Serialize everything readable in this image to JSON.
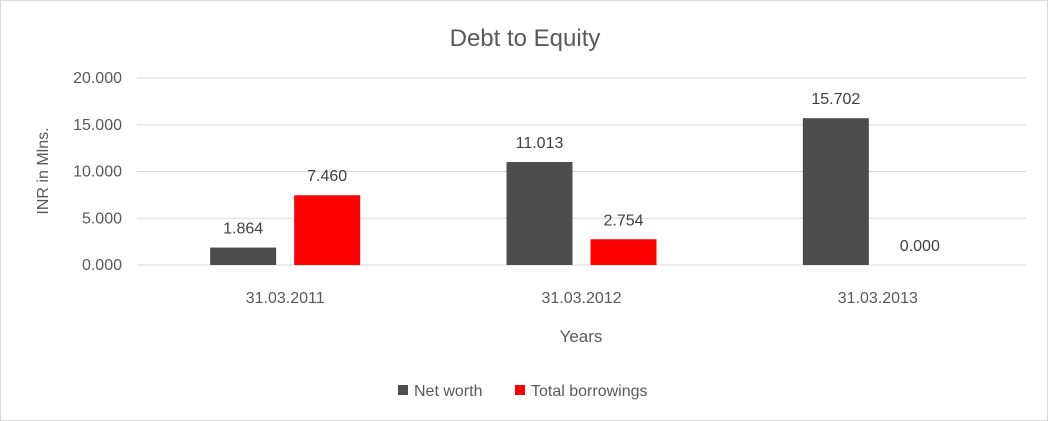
{
  "chart_data": {
    "type": "bar",
    "title": "Debt to Equity",
    "xlabel": "Years",
    "ylabel": "INR in Mlns.",
    "categories": [
      "31.03.2011",
      "31.03.2012",
      "31.03.2013"
    ],
    "series": [
      {
        "name": "Net worth",
        "color": "#4d4d4d",
        "values": [
          1.864,
          11.013,
          15.702
        ],
        "labels": [
          "1.864",
          "11.013",
          "15.702"
        ]
      },
      {
        "name": "Total borrowings",
        "color": "#ff0000",
        "values": [
          7.46,
          2.754,
          0.0
        ],
        "labels": [
          "7.460",
          "2.754",
          "0.000"
        ]
      }
    ],
    "y_ticks": [
      "0.000",
      "5.000",
      "10.000",
      "15.000",
      "20.000"
    ],
    "ylim": [
      0,
      20
    ],
    "grid": true,
    "legend_position": "bottom"
  }
}
